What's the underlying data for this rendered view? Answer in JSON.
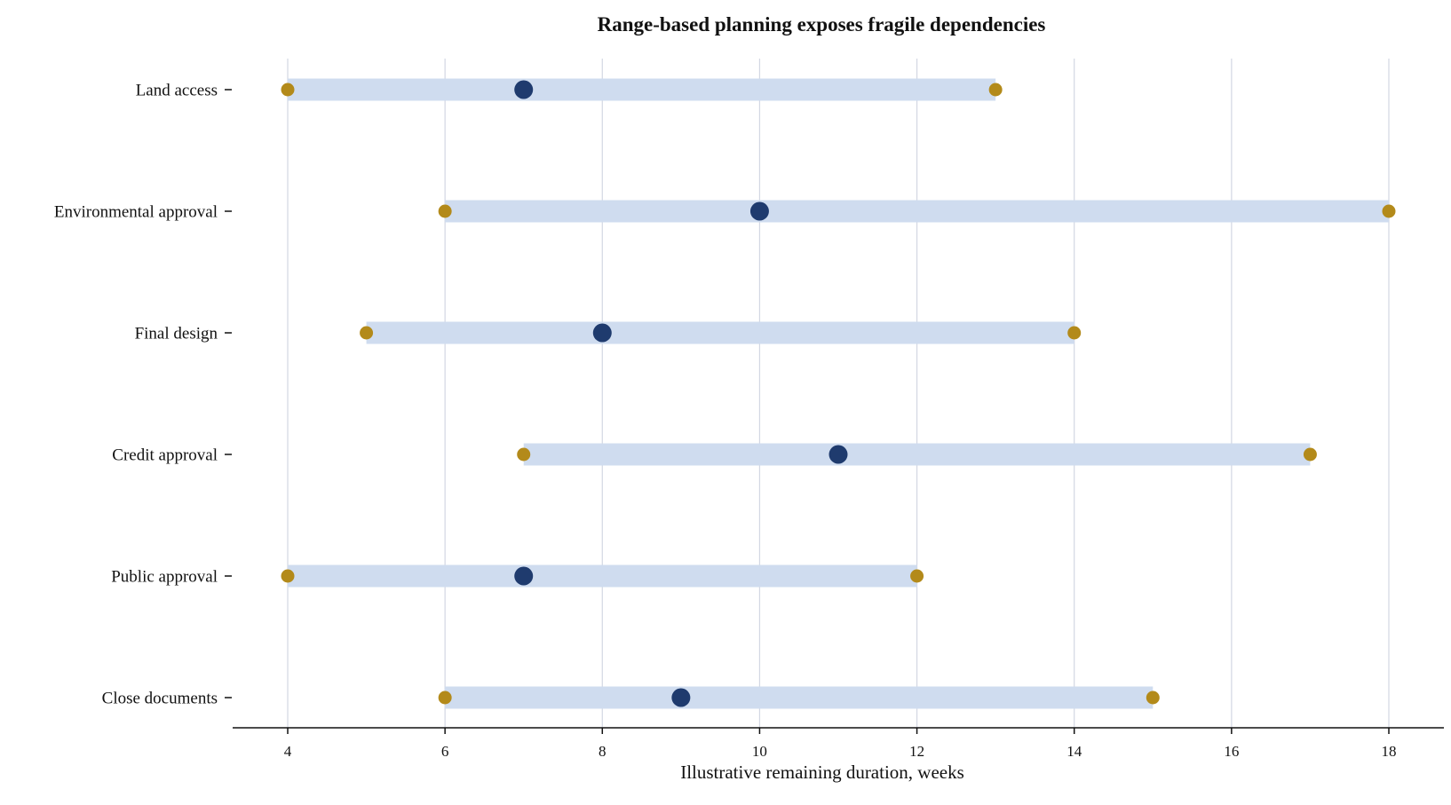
{
  "chart_data": {
    "type": "range-dot",
    "title": "Range-based planning exposes fragile dependencies",
    "xlabel": "Illustrative remaining duration, weeks",
    "ylabel": "",
    "xlim": [
      3.3,
      18.7
    ],
    "xticks": [
      4,
      6,
      8,
      10,
      12,
      14,
      16,
      18
    ],
    "grid": "vertical",
    "categories": [
      "Land access",
      "Environmental approval",
      "Final design",
      "Credit approval",
      "Public approval",
      "Close documents"
    ],
    "low": [
      4,
      6,
      5,
      7,
      4,
      6
    ],
    "likely": [
      7,
      10,
      8,
      11,
      7,
      9
    ],
    "high": [
      13,
      18,
      14,
      17,
      12,
      15
    ],
    "colors": {
      "title": "#1f3b6e",
      "range_bar": "#cfdcef",
      "endpoint": "#b38a1a",
      "likely": "#1f3b6e",
      "grid": "#d3d7e3",
      "axis": "#111111"
    }
  }
}
